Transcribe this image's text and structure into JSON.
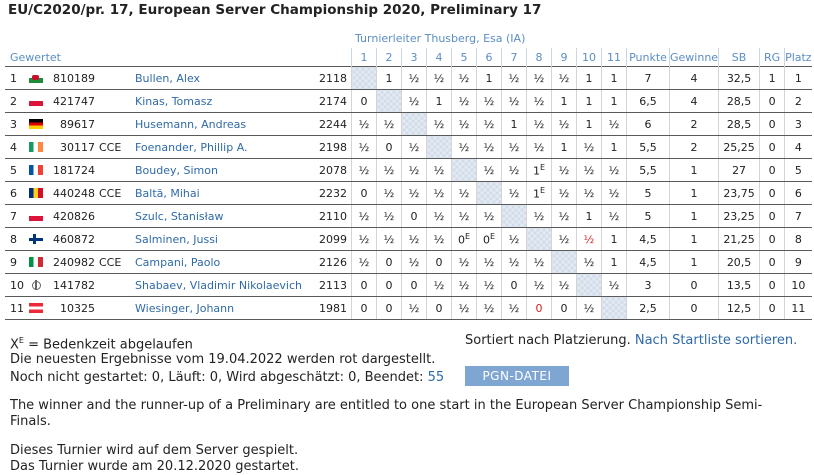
{
  "title": "EU/C2020/pr. 17, European Server Championship 2020, Preliminary 17",
  "tournament_director": "Turnierleiter Thusberg, Esa (IA)",
  "gewertet_label": "Gewertet",
  "headers": {
    "cols": [
      "1",
      "2",
      "3",
      "4",
      "5",
      "6",
      "7",
      "8",
      "9",
      "10",
      "11"
    ],
    "punkte": "Punkte",
    "gewinne": "Gewinne",
    "sb": "SB",
    "rg": "RG",
    "platz": "Platz"
  },
  "players": [
    {
      "rank": "1",
      "flag": "wales",
      "id": "810189",
      "title": "",
      "name": "Bullen, Alex",
      "elo": "2118",
      "results": [
        "",
        "1",
        "½",
        "½",
        "½",
        "1",
        "½",
        "½",
        "½",
        "1",
        "1"
      ],
      "punkte": "7",
      "gewinne": "4",
      "sb": "32,5",
      "rg": "1",
      "platz": "1"
    },
    {
      "rank": "2",
      "flag": "poland",
      "id": "421747",
      "title": "",
      "name": "Kinas, Tomasz",
      "elo": "2174",
      "results": [
        "0",
        "",
        "½",
        "1",
        "½",
        "½",
        "½",
        "½",
        "1",
        "1",
        "1"
      ],
      "punkte": "6,5",
      "gewinne": "4",
      "sb": "28,5",
      "rg": "0",
      "platz": "2"
    },
    {
      "rank": "3",
      "flag": "germany",
      "id": "89617",
      "title": "",
      "name": "Husemann, Andreas",
      "elo": "2244",
      "results": [
        "½",
        "½",
        "",
        "½",
        "½",
        "½",
        "1",
        "½",
        "½",
        "1",
        "½"
      ],
      "punkte": "6",
      "gewinne": "2",
      "sb": "28,5",
      "rg": "0",
      "platz": "3"
    },
    {
      "rank": "4",
      "flag": "ireland",
      "id": "30117",
      "title": "CCE",
      "name": "Foenander, Phillip A.",
      "elo": "2198",
      "results": [
        "½",
        "0",
        "½",
        "",
        "½",
        "½",
        "½",
        "½",
        "1",
        "½",
        "1"
      ],
      "punkte": "5,5",
      "gewinne": "2",
      "sb": "25,25",
      "rg": "0",
      "platz": "4"
    },
    {
      "rank": "5",
      "flag": "france",
      "id": "181724",
      "title": "",
      "name": "Boudey, Simon",
      "elo": "2078",
      "results": [
        "½",
        "½",
        "½",
        "½",
        "",
        "½",
        "½",
        "1E",
        "½",
        "½",
        "½"
      ],
      "punkte": "5,5",
      "gewinne": "1",
      "sb": "27",
      "rg": "0",
      "platz": "5"
    },
    {
      "rank": "6",
      "flag": "romania",
      "id": "440248",
      "title": "CCE",
      "name": "Baltă, Mihai",
      "elo": "2232",
      "results": [
        "0",
        "½",
        "½",
        "½",
        "½",
        "",
        "½",
        "1E",
        "½",
        "½",
        "½"
      ],
      "punkte": "5",
      "gewinne": "1",
      "sb": "23,75",
      "rg": "0",
      "platz": "6"
    },
    {
      "rank": "7",
      "flag": "poland",
      "id": "420826",
      "title": "",
      "name": "Szulc, Stanisław",
      "elo": "2110",
      "results": [
        "½",
        "½",
        "0",
        "½",
        "½",
        "½",
        "",
        "½",
        "½",
        "1",
        "½"
      ],
      "punkte": "5",
      "gewinne": "1",
      "sb": "23,25",
      "rg": "0",
      "platz": "7"
    },
    {
      "rank": "8",
      "flag": "finland",
      "id": "460872",
      "title": "",
      "name": "Salminen, Jussi",
      "elo": "2099",
      "results": [
        "½",
        "½",
        "½",
        "½",
        "0E",
        "0E",
        "½",
        "",
        "½",
        "½",
        "1"
      ],
      "punkte": "4,5",
      "gewinne": "1",
      "sb": "21,25",
      "rg": "0",
      "platz": "8"
    },
    {
      "rank": "9",
      "flag": "italy",
      "id": "240982",
      "title": "CCE",
      "name": "Campani, Paolo",
      "elo": "2126",
      "results": [
        "½",
        "0",
        "½",
        "0",
        "½",
        "½",
        "½",
        "½",
        "",
        "½",
        "1"
      ],
      "punkte": "4,5",
      "gewinne": "1",
      "sb": "20,5",
      "rg": "0",
      "platz": "9"
    },
    {
      "rank": "10",
      "flag": "iccf",
      "id": "141782",
      "title": "",
      "name": "Shabaev, Vladimir Nikolaevich",
      "elo": "2113",
      "results": [
        "0",
        "0",
        "0",
        "½",
        "½",
        "½",
        "0",
        "½",
        "½",
        "",
        "½"
      ],
      "punkte": "3",
      "gewinne": "0",
      "sb": "13,5",
      "rg": "0",
      "platz": "10"
    },
    {
      "rank": "11",
      "flag": "austria",
      "id": "10325",
      "title": "",
      "name": "Wiesinger, Johann",
      "elo": "1981",
      "results": [
        "0",
        "0",
        "½",
        "0",
        "½",
        "½",
        "½",
        "0",
        "0",
        "½",
        ""
      ],
      "punkte": "2,5",
      "gewinne": "0",
      "sb": "12,5",
      "rg": "0",
      "platz": "11"
    }
  ],
  "red_cells": [
    [
      8,
      10
    ],
    [
      11,
      8
    ]
  ],
  "legend": {
    "x": "X",
    "sup": "E",
    "text": " = Bedenkzeit abgelaufen"
  },
  "sort": {
    "text": "Sortiert nach Platzierung. ",
    "link": "Nach Startliste sortieren."
  },
  "newest_results": "Die neuesten Ergebnisse vom 19.04.2022 werden rot dargestellt.",
  "status": {
    "text": "Noch nicht gestartet: 0, Läuft: 0, Wird abgeschätzt: 0, Beendet: ",
    "count": "55"
  },
  "pgn_button": "PGN-DATEI",
  "info1": "The winner and the runner-up of a Preliminary are entitled to one start in the European Server Championship Semi-Finals.",
  "info2": "Dieses Turnier wird auf dem Server gespielt.",
  "info3": "Das Turnier wurde am 20.12.2020 gestartet."
}
